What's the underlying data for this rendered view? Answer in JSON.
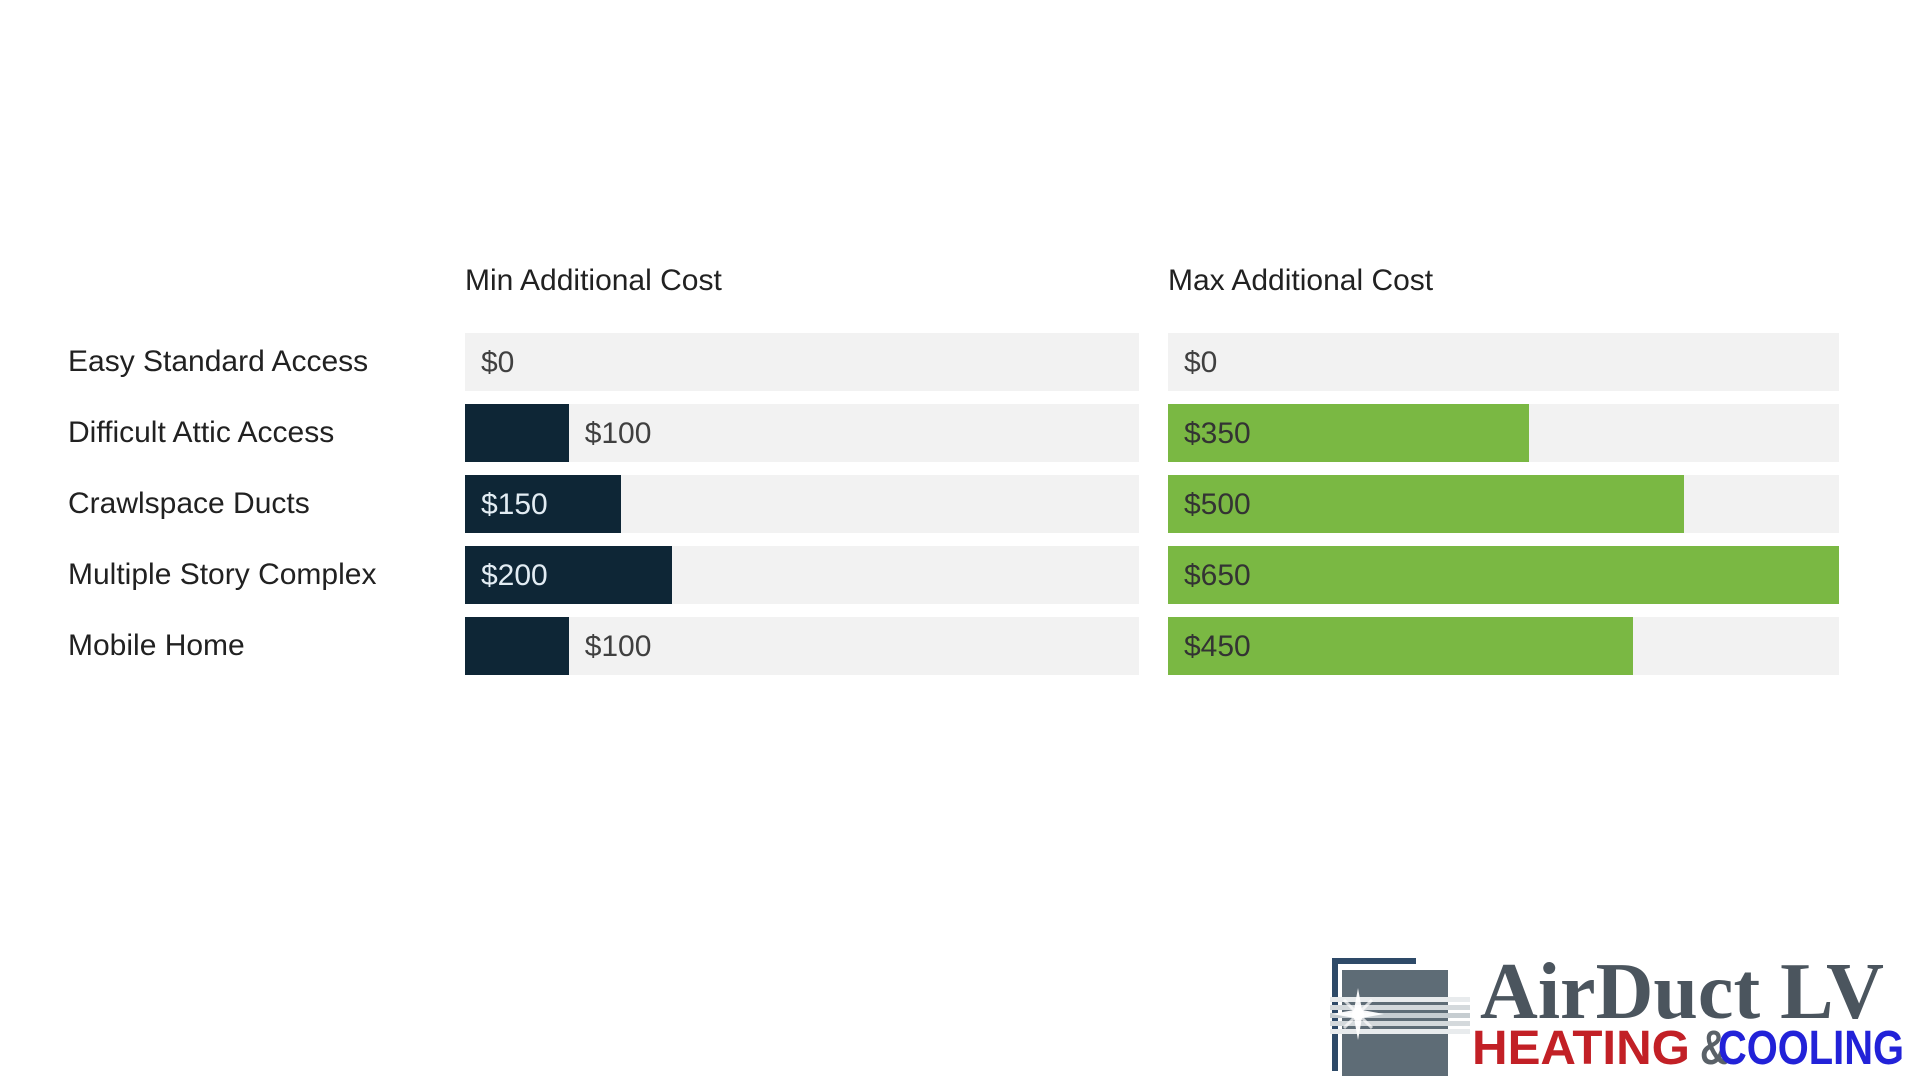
{
  "chart": {
    "headers": {
      "min": "Min Additional Cost",
      "max": "Max Additional Cost"
    },
    "colors": {
      "min_bar": "#0e2636",
      "max_bar": "#7ab843",
      "track": "#f2f2f2",
      "text": "#212121",
      "value_on_dark": "#e2ecf3",
      "value_on_light": "#404040"
    }
  },
  "chart_data": {
    "type": "bar",
    "orientation": "horizontal",
    "title": "",
    "xlabel": "",
    "ylabel": "",
    "categories": [
      "Easy Standard Access",
      "Difficult Attic Access",
      "Crawlspace Ducts",
      "Multiple Story Complex",
      "Mobile Home"
    ],
    "series": [
      {
        "name": "Min Additional Cost",
        "color": "#0e2636",
        "values": [
          0,
          100,
          150,
          200,
          100
        ]
      },
      {
        "name": "Max Additional Cost",
        "color": "#7ab843",
        "values": [
          0,
          350,
          500,
          650,
          450
        ]
      }
    ],
    "value_labels": [
      [
        "$0",
        "$100",
        "$150",
        "$200",
        "$100"
      ],
      [
        "$0",
        "$350",
        "$500",
        "$650",
        "$450"
      ]
    ],
    "xlim": [
      0,
      650
    ],
    "gridlines": false,
    "legend": "none",
    "layout": "two side-by-side bar columns sharing category labels, value annotations on bars"
  },
  "rows": [
    {
      "category": "Easy Standard Access",
      "min": {
        "label": "$0",
        "value": 0,
        "placement": "start"
      },
      "max": {
        "label": "$0",
        "value": 0,
        "placement": "start"
      }
    },
    {
      "category": "Difficult Attic Access",
      "min": {
        "label": "$100",
        "value": 100,
        "placement": "outside"
      },
      "max": {
        "label": "$350",
        "value": 350,
        "placement": "inside"
      }
    },
    {
      "category": "Crawlspace Ducts",
      "min": {
        "label": "$150",
        "value": 150,
        "placement": "inside"
      },
      "max": {
        "label": "$500",
        "value": 500,
        "placement": "inside"
      }
    },
    {
      "category": "Multiple Story Complex",
      "min": {
        "label": "$200",
        "value": 200,
        "placement": "inside"
      },
      "max": {
        "label": "$650",
        "value": 650,
        "placement": "inside"
      }
    },
    {
      "category": "Mobile Home",
      "min": {
        "label": "$100",
        "value": 100,
        "placement": "outside"
      },
      "max": {
        "label": "$450",
        "value": 450,
        "placement": "inside"
      }
    }
  ],
  "logo": {
    "brand": "AirDuct LV",
    "tagline_heating": "HEATING",
    "tagline_amp": "&",
    "tagline_cooling": "COOLING",
    "colors": {
      "brand_text": "#4b555e",
      "heating": "#c22026",
      "amp": "#5a6168",
      "cooling": "#2222d8",
      "duct_square": "#5e6c76",
      "bracket": "#2e4a68"
    }
  }
}
